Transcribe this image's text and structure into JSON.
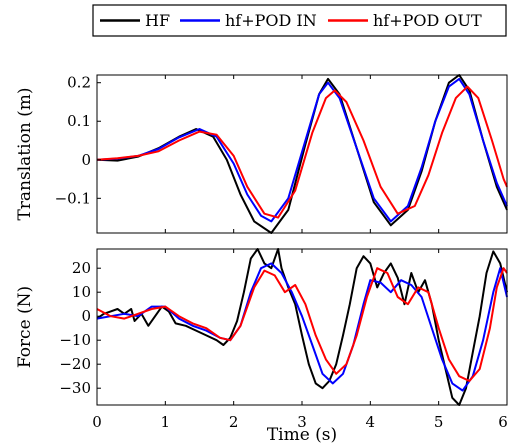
{
  "legend": {
    "items": [
      {
        "label": "HF",
        "color": "#000000"
      },
      {
        "label": "hf+POD IN",
        "color": "#0000ff"
      },
      {
        "label": "hf+POD OUT",
        "color": "#ff0000"
      }
    ],
    "placement": "top-right"
  },
  "chart_data": [
    {
      "type": "line",
      "xlabel": "",
      "ylabel": "Translation (m)",
      "xlim": [
        0,
        6
      ],
      "ylim": [
        -0.19,
        0.22
      ],
      "yticks": [
        0.2,
        0.1,
        0,
        -0.1
      ],
      "ytick_labels": [
        "0.2",
        "0.1",
        "0",
        "−0.1"
      ],
      "grid": false,
      "series": [
        {
          "name": "HF",
          "color": "#000000",
          "x": [
            0,
            0.3,
            0.6,
            0.9,
            1.2,
            1.45,
            1.7,
            1.9,
            2.1,
            2.3,
            2.55,
            2.8,
            3.05,
            3.25,
            3.38,
            3.55,
            3.8,
            4.05,
            4.3,
            4.55,
            4.75,
            4.95,
            5.15,
            5.3,
            5.45,
            5.65,
            5.85,
            6.0
          ],
          "y": [
            0,
            -0.002,
            0.008,
            0.03,
            0.06,
            0.08,
            0.06,
            0.0,
            -0.09,
            -0.16,
            -0.19,
            -0.13,
            0.04,
            0.17,
            0.21,
            0.17,
            0.03,
            -0.11,
            -0.17,
            -0.13,
            -0.03,
            0.1,
            0.2,
            0.22,
            0.18,
            0.05,
            -0.07,
            -0.13
          ]
        },
        {
          "name": "hf+POD IN",
          "color": "#0000ff",
          "x": [
            0,
            0.3,
            0.6,
            0.9,
            1.2,
            1.5,
            1.75,
            2.0,
            2.2,
            2.4,
            2.55,
            2.8,
            3.05,
            3.25,
            3.38,
            3.55,
            3.8,
            4.05,
            4.3,
            4.55,
            4.75,
            4.95,
            5.15,
            5.3,
            5.45,
            5.65,
            5.85,
            6.0
          ],
          "y": [
            0,
            0.003,
            0.01,
            0.028,
            0.058,
            0.08,
            0.06,
            -0.01,
            -0.09,
            -0.145,
            -0.16,
            -0.1,
            0.05,
            0.17,
            0.2,
            0.16,
            0.03,
            -0.1,
            -0.16,
            -0.12,
            -0.02,
            0.1,
            0.19,
            0.21,
            0.17,
            0.05,
            -0.06,
            -0.12
          ]
        },
        {
          "name": "hf+POD OUT",
          "color": "#ff0000",
          "x": [
            0,
            0.3,
            0.6,
            0.9,
            1.2,
            1.5,
            1.75,
            2.0,
            2.2,
            2.45,
            2.65,
            2.9,
            3.15,
            3.35,
            3.48,
            3.65,
            3.9,
            4.15,
            4.4,
            4.65,
            4.85,
            5.05,
            5.25,
            5.42,
            5.58,
            5.78,
            5.95,
            6.0
          ],
          "y": [
            0,
            0.004,
            0.01,
            0.022,
            0.05,
            0.073,
            0.065,
            0.01,
            -0.07,
            -0.14,
            -0.15,
            -0.08,
            0.07,
            0.16,
            0.18,
            0.15,
            0.05,
            -0.07,
            -0.14,
            -0.12,
            -0.04,
            0.07,
            0.16,
            0.19,
            0.16,
            0.05,
            -0.05,
            -0.07
          ]
        }
      ]
    },
    {
      "type": "line",
      "xlabel": "Time (s)",
      "ylabel": "Force (N)",
      "xlim": [
        0,
        6
      ],
      "ylim": [
        -37,
        28
      ],
      "xticks": [
        0,
        1,
        2,
        3,
        4,
        5,
        6
      ],
      "xtick_labels": [
        "0",
        "1",
        "2",
        "3",
        "4",
        "5",
        "6"
      ],
      "yticks": [
        20,
        10,
        0,
        -10,
        -20,
        -30
      ],
      "ytick_labels": [
        "20",
        "10",
        "0",
        "−10",
        "−20",
        "−30"
      ],
      "grid": false,
      "series": [
        {
          "name": "HF",
          "color": "#000000",
          "x": [
            0,
            0.1,
            0.2,
            0.3,
            0.4,
            0.5,
            0.55,
            0.65,
            0.75,
            0.85,
            0.95,
            1.05,
            1.15,
            1.3,
            1.45,
            1.6,
            1.75,
            1.85,
            1.95,
            2.05,
            2.15,
            2.25,
            2.35,
            2.45,
            2.55,
            2.65,
            2.7,
            2.8,
            2.9,
            3.0,
            3.1,
            3.2,
            3.3,
            3.4,
            3.5,
            3.6,
            3.7,
            3.8,
            3.9,
            4.0,
            4.1,
            4.2,
            4.3,
            4.4,
            4.5,
            4.6,
            4.7,
            4.8,
            4.9,
            5.0,
            5.1,
            5.2,
            5.3,
            5.4,
            5.5,
            5.6,
            5.7,
            5.8,
            5.9,
            6.0
          ],
          "y": [
            -1,
            1,
            2,
            3,
            1,
            3,
            -2,
            1,
            -4,
            0,
            4,
            2,
            -3,
            -4,
            -6,
            -8,
            -10,
            -12,
            -9,
            -2,
            10,
            24,
            28,
            22,
            20,
            28,
            20,
            12,
            5,
            -8,
            -20,
            -28,
            -30,
            -27,
            -20,
            -8,
            5,
            20,
            25,
            22,
            12,
            18,
            22,
            16,
            5,
            18,
            10,
            15,
            5,
            -10,
            -22,
            -34,
            -37,
            -30,
            -15,
            0,
            18,
            27,
            22,
            10
          ]
        },
        {
          "name": "hf+POD IN",
          "color": "#0000ff",
          "x": [
            0,
            0.2,
            0.4,
            0.6,
            0.8,
            1.0,
            1.2,
            1.4,
            1.6,
            1.8,
            1.95,
            2.1,
            2.25,
            2.4,
            2.55,
            2.7,
            2.85,
            3.0,
            3.15,
            3.3,
            3.45,
            3.6,
            3.75,
            3.9,
            4.0,
            4.15,
            4.3,
            4.45,
            4.6,
            4.75,
            4.9,
            5.05,
            5.2,
            5.35,
            5.5,
            5.65,
            5.8,
            5.9,
            6.0
          ],
          "y": [
            -1,
            0,
            1,
            0,
            4,
            4,
            -1,
            -4,
            -6,
            -9,
            -10,
            -4,
            10,
            20,
            22,
            18,
            10,
            0,
            -12,
            -24,
            -28,
            -24,
            -12,
            5,
            15,
            14,
            10,
            15,
            13,
            8,
            -5,
            -18,
            -28,
            -31,
            -25,
            -10,
            10,
            20,
            8
          ]
        },
        {
          "name": "hf+POD OUT",
          "color": "#ff0000",
          "x": [
            0,
            0.2,
            0.4,
            0.6,
            0.8,
            1.0,
            1.2,
            1.4,
            1.6,
            1.8,
            1.95,
            2.1,
            2.3,
            2.45,
            2.6,
            2.75,
            2.9,
            3.05,
            3.2,
            3.35,
            3.5,
            3.65,
            3.8,
            3.95,
            4.1,
            4.25,
            4.4,
            4.55,
            4.7,
            4.85,
            5.0,
            5.15,
            5.3,
            5.45,
            5.6,
            5.75,
            5.85,
            5.95,
            6.0
          ],
          "y": [
            3,
            0,
            -1,
            1,
            3,
            4,
            0,
            -3,
            -5,
            -9,
            -10,
            -4,
            12,
            19,
            17,
            10,
            13,
            5,
            -8,
            -18,
            -24,
            -20,
            -8,
            8,
            20,
            18,
            8,
            5,
            12,
            10,
            -5,
            -18,
            -25,
            -27,
            -22,
            -5,
            12,
            20,
            18
          ]
        }
      ]
    }
  ]
}
